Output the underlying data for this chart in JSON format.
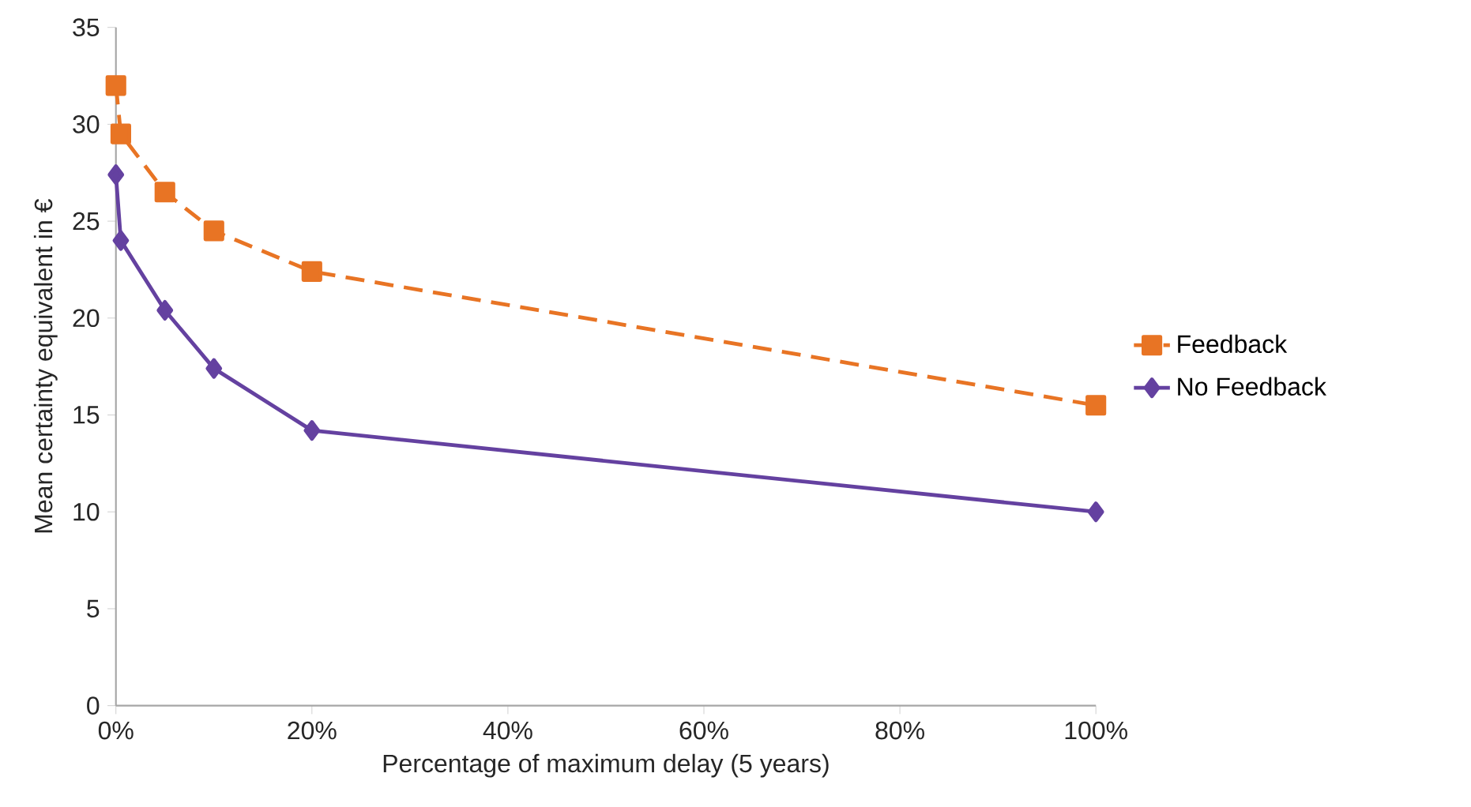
{
  "chart_data": {
    "type": "line",
    "xlabel": "Percentage of maximum delay (5 years)",
    "ylabel": "Mean certainty equivalent in €",
    "x": [
      0,
      0.5,
      5,
      10,
      20,
      100
    ],
    "series": [
      {
        "name": "Feedback",
        "color": "#e87424",
        "values": [
          32,
          29.5,
          26.5,
          24.5,
          22.4,
          15.5
        ],
        "marker": "square",
        "line_style": "dashed"
      },
      {
        "name": "No Feedback",
        "color": "#6441a0",
        "values": [
          27.4,
          24,
          20.4,
          17.4,
          14.2,
          10
        ],
        "marker": "diamond",
        "line_style": "solid"
      }
    ],
    "xlim": [
      0,
      100
    ],
    "ylim": [
      0,
      35
    ],
    "xticks": [
      {
        "value": 0,
        "label": "0%"
      },
      {
        "value": 20,
        "label": "20%"
      },
      {
        "value": 40,
        "label": "40%"
      },
      {
        "value": 60,
        "label": "60%"
      },
      {
        "value": 80,
        "label": "80%"
      },
      {
        "value": 100,
        "label": "100%"
      }
    ],
    "yticks": [
      0,
      5,
      10,
      15,
      20,
      25,
      30,
      35
    ],
    "grid": false,
    "legend": "right"
  }
}
